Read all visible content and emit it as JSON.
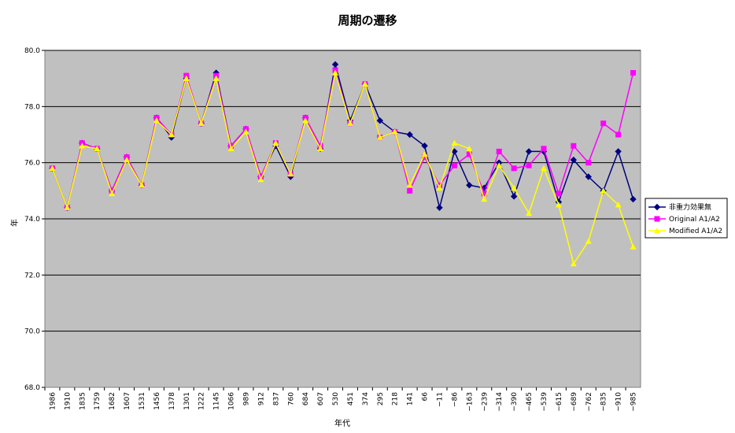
{
  "chart_data": {
    "type": "line",
    "title": "周期の遷移",
    "xlabel": "年代",
    "ylabel": "年",
    "ylim": [
      68,
      80
    ],
    "yticks": [
      "68.0",
      "70.0",
      "72.0",
      "74.0",
      "76.0",
      "78.0",
      "80.0"
    ],
    "grid": true,
    "legend_position": "right",
    "categories": [
      "1986",
      "1910",
      "1835",
      "1759",
      "1682",
      "1607",
      "1531",
      "1456",
      "1378",
      "1301",
      "1222",
      "1145",
      "1066",
      "989",
      "912",
      "837",
      "760",
      "684",
      "607",
      "530",
      "451",
      "374",
      "295",
      "218",
      "141",
      "66",
      "−11",
      "−86",
      "−163",
      "−239",
      "−314",
      "−390",
      "−465",
      "−539",
      "−615",
      "−689",
      "−762",
      "−835",
      "−910",
      "−985"
    ],
    "series": [
      {
        "name": "非重力効果無",
        "color": "#000080",
        "marker": "diamond",
        "values": [
          75.8,
          74.4,
          76.7,
          76.5,
          75.0,
          76.2,
          75.2,
          77.6,
          76.9,
          79.0,
          77.4,
          79.2,
          76.6,
          77.2,
          75.5,
          76.6,
          75.5,
          77.6,
          76.5,
          79.5,
          77.5,
          78.8,
          77.5,
          77.1,
          77.0,
          76.6,
          74.4,
          76.4,
          75.2,
          75.1,
          76.0,
          74.8,
          76.4,
          76.4,
          74.6,
          76.1,
          75.5,
          75.0,
          76.4,
          74.7
        ]
      },
      {
        "name": "Original A1/A2",
        "color": "#FF00FF",
        "marker": "square",
        "values": [
          75.8,
          74.4,
          76.7,
          76.5,
          75.0,
          76.2,
          75.2,
          77.6,
          77.0,
          79.1,
          77.4,
          79.1,
          76.6,
          77.2,
          75.5,
          76.7,
          75.6,
          77.6,
          76.6,
          79.3,
          77.4,
          78.8,
          76.9,
          77.1,
          75.0,
          76.2,
          75.2,
          75.9,
          76.3,
          74.9,
          76.4,
          75.8,
          75.9,
          76.5,
          74.9,
          76.6,
          76.0,
          77.4,
          77.0,
          79.2
        ]
      },
      {
        "name": "Modified A1/A2",
        "color": "#FFFF00",
        "marker": "triangle",
        "values": [
          75.8,
          74.4,
          76.6,
          76.5,
          74.9,
          76.1,
          75.2,
          77.5,
          77.0,
          79.0,
          77.4,
          79.0,
          76.5,
          77.1,
          75.4,
          76.7,
          75.6,
          77.5,
          76.5,
          79.2,
          77.4,
          78.8,
          76.9,
          77.1,
          75.2,
          76.3,
          75.1,
          76.7,
          76.5,
          74.7,
          75.9,
          75.1,
          74.2,
          75.8,
          74.5,
          72.4,
          73.2,
          75.0,
          74.5,
          73.0
        ]
      }
    ]
  }
}
